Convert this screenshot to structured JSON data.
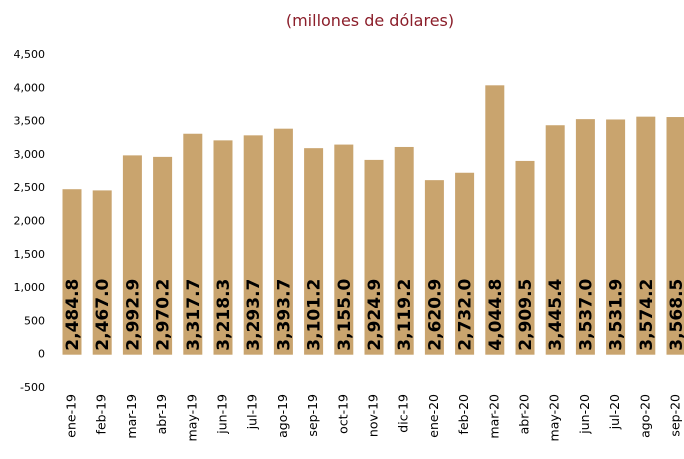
{
  "chart_data": {
    "type": "bar",
    "title": "(millones de dólares)",
    "categories": [
      "ene-19",
      "feb-19",
      "mar-19",
      "abr-19",
      "may-19",
      "jun-19",
      "jul-19",
      "ago-19",
      "sep-19",
      "oct-19",
      "nov-19",
      "dic-19",
      "ene-20",
      "feb-20",
      "mar-20",
      "abr-20",
      "may-20",
      "jun-20",
      "jul-20",
      "ago-20",
      "sep-20"
    ],
    "values": [
      2484.8,
      2467.0,
      2992.9,
      2970.2,
      3317.7,
      3218.3,
      3293.7,
      3393.7,
      3101.2,
      3155.0,
      2924.9,
      3119.2,
      2620.9,
      2732.0,
      4044.8,
      2909.5,
      3445.4,
      3537.0,
      3531.9,
      3574.2,
      3568.5
    ],
    "value_labels": [
      "2,484.8",
      "2,467.0",
      "2,992.9",
      "2,970.2",
      "3,317.7",
      "3,218.3",
      "3,293.7",
      "3,393.7",
      "3,101.2",
      "3,155.0",
      "2,924.9",
      "3,119.2",
      "2,620.9",
      "2,732.0",
      "4,044.8",
      "2,909.5",
      "3,445.4",
      "3,537.0",
      "3,531.9",
      "3,574.2",
      "3,568.5"
    ],
    "color": "#c9a46e",
    "ylim": [
      -500,
      4500
    ],
    "yticks": [
      {
        "value": -500,
        "label": "-500"
      },
      0,
      500,
      {
        "value": 1000,
        "label": "1,000"
      },
      {
        "value": 1500,
        "label": "1,500"
      },
      {
        "value": 2000,
        "label": "2,000"
      },
      {
        "value": 2500,
        "label": "2,500"
      },
      {
        "value": 3000,
        "label": "3,000"
      },
      {
        "value": 3500,
        "label": "3,500"
      },
      {
        "value": 4000,
        "label": "4,000"
      },
      {
        "value": 4500,
        "label": "4,500"
      }
    ],
    "grid": false
  }
}
